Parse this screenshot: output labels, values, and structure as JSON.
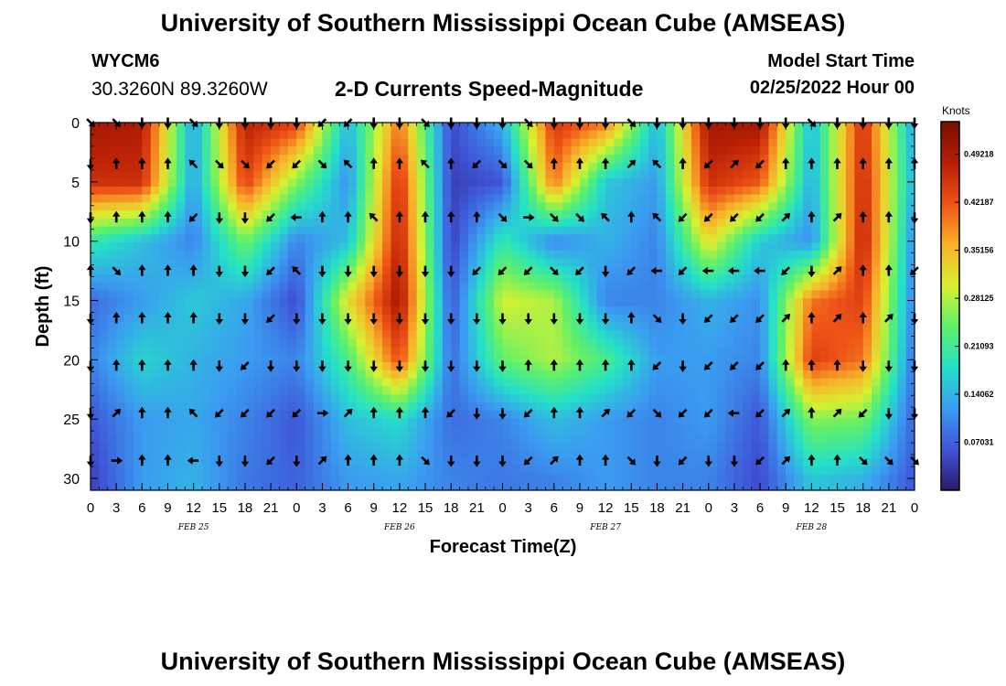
{
  "header": {
    "title": "University of Southern Mississippi Ocean Cube (AMSEAS)",
    "station_id": "WYCM6",
    "coordinates": "30.3260N  89.3260W",
    "subtitle": "2-D Currents Speed-Magnitude",
    "model_start_label": "Model Start Time",
    "model_start_value": "02/25/2022 Hour 00"
  },
  "footer": {
    "title": "University of Southern Mississippi Ocean Cube (AMSEAS)"
  },
  "colors": {
    "scale": [
      "#2b1a6b",
      "#3f55d8",
      "#3a9cf0",
      "#24e0c8",
      "#5ef06a",
      "#d8f030",
      "#f8b22a",
      "#ee5216",
      "#b81f04",
      "#781000"
    ],
    "arrow": "#000000",
    "axis": "#000000",
    "background": "#ffffff"
  },
  "chart_data": {
    "type": "heatmap",
    "title": "2-D Currents Speed-Magnitude",
    "xlabel": "Forecast Time(Z)",
    "ylabel": "Depth (ft)",
    "x_range_hours": [
      0,
      96
    ],
    "x_ticks": [
      "0",
      "3",
      "6",
      "9",
      "12",
      "15",
      "18",
      "21",
      "0",
      "3",
      "6",
      "9",
      "12",
      "15",
      "18",
      "21",
      "0",
      "3",
      "6",
      "9",
      "12",
      "15",
      "18",
      "21",
      "0",
      "3",
      "6",
      "9",
      "12",
      "15",
      "18",
      "21",
      "0"
    ],
    "day_labels": [
      "FEB 25",
      "FEB 26",
      "FEB 27",
      "FEB 28"
    ],
    "y_range_ft": [
      0,
      31
    ],
    "y_ticks": [
      "0",
      "5",
      "10",
      "15",
      "20",
      "25",
      "30"
    ],
    "colorbar": {
      "unit": "Knots",
      "min": 0,
      "max": 0.54,
      "tick_labels": [
        "0.49218",
        "0.42187",
        "0.35156",
        "0.28125",
        "0.21093",
        "0.14062",
        "0.07031"
      ]
    },
    "speed_grid": {
      "rows_depth_ft": [
        0,
        5,
        10,
        15,
        20,
        25,
        30
      ],
      "cols_hour": [
        0,
        6,
        12,
        18,
        24,
        30,
        36,
        42,
        48,
        54,
        60,
        66,
        72,
        78,
        84,
        90,
        96
      ],
      "values": [
        [
          0.5,
          0.49,
          0.12,
          0.48,
          0.44,
          0.14,
          0.4,
          0.05,
          0.14,
          0.45,
          0.4,
          0.14,
          0.5,
          0.5,
          0.14,
          0.46,
          0.12
        ],
        [
          0.46,
          0.46,
          0.12,
          0.44,
          0.26,
          0.11,
          0.46,
          0.04,
          0.06,
          0.4,
          0.16,
          0.12,
          0.46,
          0.42,
          0.13,
          0.47,
          0.13
        ],
        [
          0.2,
          0.15,
          0.1,
          0.25,
          0.1,
          0.15,
          0.48,
          0.04,
          0.2,
          0.1,
          0.14,
          0.1,
          0.32,
          0.16,
          0.11,
          0.48,
          0.1
        ],
        [
          0.08,
          0.12,
          0.16,
          0.13,
          0.05,
          0.32,
          0.5,
          0.06,
          0.3,
          0.28,
          0.1,
          0.1,
          0.14,
          0.11,
          0.4,
          0.44,
          0.09
        ],
        [
          0.1,
          0.17,
          0.14,
          0.12,
          0.1,
          0.22,
          0.43,
          0.08,
          0.24,
          0.28,
          0.22,
          0.12,
          0.12,
          0.1,
          0.44,
          0.4,
          0.08
        ],
        [
          0.06,
          0.12,
          0.13,
          0.1,
          0.06,
          0.15,
          0.18,
          0.08,
          0.1,
          0.15,
          0.12,
          0.1,
          0.12,
          0.06,
          0.26,
          0.25,
          0.07
        ],
        [
          0.04,
          0.12,
          0.14,
          0.09,
          0.07,
          0.12,
          0.13,
          0.1,
          0.09,
          0.1,
          0.12,
          0.1,
          0.1,
          0.05,
          0.16,
          0.14,
          0.06
        ]
      ]
    },
    "vectors": {
      "cols_hour": [
        0,
        3,
        6,
        9,
        12,
        15,
        18,
        21,
        24,
        27,
        30,
        33,
        36,
        39,
        42,
        45,
        48,
        51,
        54,
        57,
        60,
        63,
        66,
        69,
        72,
        75,
        78,
        81,
        84,
        87,
        90,
        93,
        96
      ],
      "rows_depth_ft": [
        0,
        3.5,
        8,
        12.5,
        16.5,
        20.5,
        24.5,
        28.5
      ],
      "direction_code": "N=north (up), S=south (down), E, W, NE, NW, SE, SW",
      "directions": [
        [
          "SE",
          "SE",
          "S",
          "S",
          "SE",
          "S",
          "S",
          "S",
          "S",
          "SW",
          "SW",
          "S",
          "S",
          "SE",
          "S",
          "S",
          "S",
          "SE",
          "S",
          "S",
          "S",
          "SE",
          "S",
          "S",
          "S",
          "S",
          "S",
          "S",
          "SE",
          "S",
          "S",
          "S",
          "S"
        ],
        [
          "S",
          "N",
          "N",
          "N",
          "NW",
          "SE",
          "SE",
          "SW",
          "SW",
          "SE",
          "NW",
          "N",
          "N",
          "NW",
          "N",
          "SW",
          "SE",
          "SE",
          "N",
          "N",
          "N",
          "NE",
          "NW",
          "N",
          "SW",
          "NE",
          "SW",
          "N",
          "N",
          "N",
          "N",
          "N",
          "N"
        ],
        [
          "S",
          "N",
          "N",
          "N",
          "SW",
          "S",
          "S",
          "SW",
          "W",
          "N",
          "N",
          "NW",
          "N",
          "N",
          "N",
          "N",
          "SE",
          "E",
          "SE",
          "SE",
          "NW",
          "N",
          "NW",
          "SW",
          "SW",
          "SW",
          "SW",
          "NE",
          "N",
          "NE",
          "N",
          "N",
          "S"
        ],
        [
          "N",
          "SE",
          "N",
          "N",
          "N",
          "S",
          "S",
          "SW",
          "NW",
          "S",
          "S",
          "S",
          "S",
          "S",
          "S",
          "SW",
          "SW",
          "SW",
          "SE",
          "SW",
          "S",
          "SW",
          "W",
          "SW",
          "W",
          "W",
          "W",
          "SW",
          "S",
          "NE",
          "N",
          "N",
          "SW"
        ],
        [
          "S",
          "N",
          "N",
          "N",
          "N",
          "S",
          "S",
          "SW",
          "S",
          "S",
          "S",
          "S",
          "S",
          "S",
          "S",
          "S",
          "S",
          "S",
          "S",
          "S",
          "S",
          "N",
          "SE",
          "S",
          "SW",
          "SW",
          "SW",
          "NE",
          "N",
          "NE",
          "N",
          "NE",
          "S"
        ],
        [
          "S",
          "N",
          "N",
          "N",
          "N",
          "S",
          "SW",
          "S",
          "S",
          "S",
          "S",
          "S",
          "S",
          "S",
          "S",
          "S",
          "S",
          "N",
          "N",
          "N",
          "N",
          "N",
          "SW",
          "S",
          "SW",
          "SW",
          "SW",
          "N",
          "N",
          "N",
          "S",
          "S",
          "S"
        ],
        [
          "S",
          "NE",
          "N",
          "N",
          "NW",
          "SW",
          "SW",
          "SW",
          "SW",
          "E",
          "NE",
          "N",
          "N",
          "N",
          "SW",
          "S",
          "S",
          "SW",
          "N",
          "N",
          "NE",
          "SW",
          "SE",
          "SW",
          "SW",
          "W",
          "SW",
          "NE",
          "N",
          "NE",
          "SW",
          "S",
          "S"
        ],
        [
          "S",
          "E",
          "N",
          "N",
          "W",
          "S",
          "S",
          "SW",
          "S",
          "NE",
          "N",
          "N",
          "N",
          "SE",
          "S",
          "S",
          "S",
          "SW",
          "NE",
          "N",
          "N",
          "SE",
          "S",
          "SW",
          "S",
          "S",
          "SW",
          "NE",
          "N",
          "N",
          "SE",
          "SE",
          "SE"
        ]
      ]
    }
  }
}
